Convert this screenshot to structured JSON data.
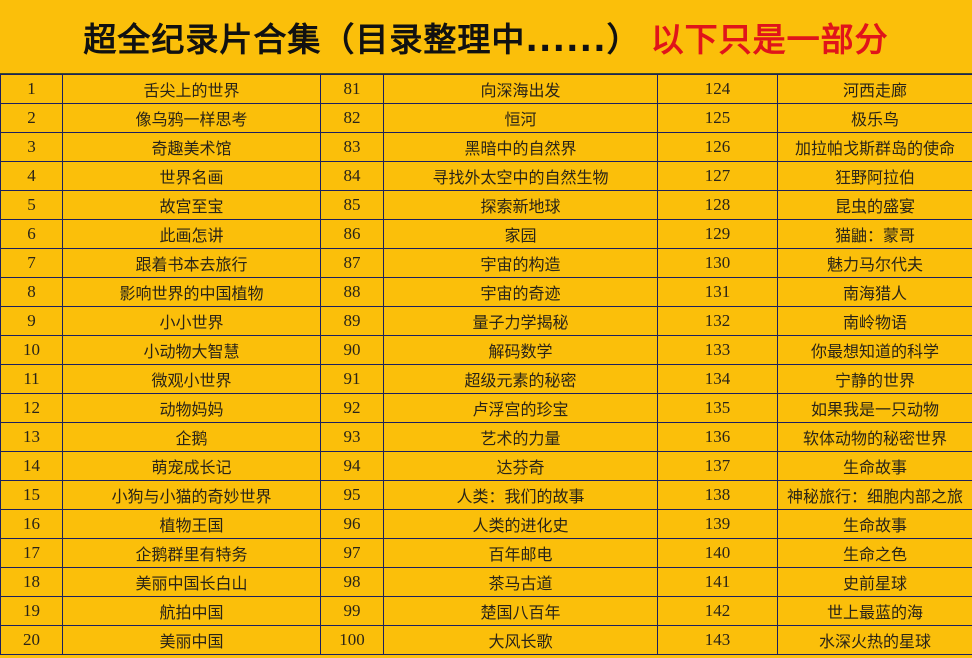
{
  "title": {
    "main": "超全纪录片合集（目录整理中......）",
    "note": "以下只是一部分"
  },
  "colors": {
    "background": "#fbbf0a",
    "note_text": "#e0141a",
    "grid": "#1c1f5e"
  },
  "rows": [
    [
      {
        "n": "1",
        "t": "舌尖上的世界"
      },
      {
        "n": "81",
        "t": "向深海出发"
      },
      {
        "n": "124",
        "t": "河西走廊"
      }
    ],
    [
      {
        "n": "2",
        "t": "像乌鸦一样思考"
      },
      {
        "n": "82",
        "t": "恒河"
      },
      {
        "n": "125",
        "t": "极乐鸟"
      }
    ],
    [
      {
        "n": "3",
        "t": "奇趣美术馆"
      },
      {
        "n": "83",
        "t": "黑暗中的自然界"
      },
      {
        "n": "126",
        "t": "加拉帕戈斯群岛的使命"
      }
    ],
    [
      {
        "n": "4",
        "t": "世界名画"
      },
      {
        "n": "84",
        "t": "寻找外太空中的自然生物"
      },
      {
        "n": "127",
        "t": "狂野阿拉伯"
      }
    ],
    [
      {
        "n": "5",
        "t": "故宫至宝"
      },
      {
        "n": "85",
        "t": "探索新地球"
      },
      {
        "n": "128",
        "t": "昆虫的盛宴"
      }
    ],
    [
      {
        "n": "6",
        "t": "此画怎讲"
      },
      {
        "n": "86",
        "t": "家园"
      },
      {
        "n": "129",
        "t": "猫鼬：蒙哥"
      }
    ],
    [
      {
        "n": "7",
        "t": "跟着书本去旅行"
      },
      {
        "n": "87",
        "t": "宇宙的构造"
      },
      {
        "n": "130",
        "t": "魅力马尔代夫"
      }
    ],
    [
      {
        "n": "8",
        "t": "影响世界的中国植物"
      },
      {
        "n": "88",
        "t": "宇宙的奇迹"
      },
      {
        "n": "131",
        "t": "南海猎人"
      }
    ],
    [
      {
        "n": "9",
        "t": "小小世界"
      },
      {
        "n": "89",
        "t": "量子力学揭秘"
      },
      {
        "n": "132",
        "t": "南岭物语"
      }
    ],
    [
      {
        "n": "10",
        "t": "小动物大智慧"
      },
      {
        "n": "90",
        "t": "解码数学"
      },
      {
        "n": "133",
        "t": "你最想知道的科学"
      }
    ],
    [
      {
        "n": "11",
        "t": "微观小世界"
      },
      {
        "n": "91",
        "t": "超级元素的秘密"
      },
      {
        "n": "134",
        "t": "宁静的世界"
      }
    ],
    [
      {
        "n": "12",
        "t": "动物妈妈"
      },
      {
        "n": "92",
        "t": "卢浮宫的珍宝"
      },
      {
        "n": "135",
        "t": "如果我是一只动物"
      }
    ],
    [
      {
        "n": "13",
        "t": "企鹅"
      },
      {
        "n": "93",
        "t": "艺术的力量"
      },
      {
        "n": "136",
        "t": "软体动物的秘密世界"
      }
    ],
    [
      {
        "n": "14",
        "t": "萌宠成长记"
      },
      {
        "n": "94",
        "t": "达芬奇"
      },
      {
        "n": "137",
        "t": "生命故事"
      }
    ],
    [
      {
        "n": "15",
        "t": "小狗与小猫的奇妙世界"
      },
      {
        "n": "95",
        "t": "人类：我们的故事"
      },
      {
        "n": "138",
        "t": "神秘旅行：细胞内部之旅"
      }
    ],
    [
      {
        "n": "16",
        "t": "植物王国"
      },
      {
        "n": "96",
        "t": "人类的进化史"
      },
      {
        "n": "139",
        "t": "生命故事"
      }
    ],
    [
      {
        "n": "17",
        "t": "企鹅群里有特务"
      },
      {
        "n": "97",
        "t": "百年邮电"
      },
      {
        "n": "140",
        "t": "生命之色"
      }
    ],
    [
      {
        "n": "18",
        "t": "美丽中国长白山"
      },
      {
        "n": "98",
        "t": "茶马古道"
      },
      {
        "n": "141",
        "t": "史前星球"
      }
    ],
    [
      {
        "n": "19",
        "t": "航拍中国"
      },
      {
        "n": "99",
        "t": "楚国八百年"
      },
      {
        "n": "142",
        "t": "世上最蓝的海"
      }
    ],
    [
      {
        "n": "20",
        "t": "美丽中国"
      },
      {
        "n": "100",
        "t": "大风长歌"
      },
      {
        "n": "143",
        "t": "水深火热的星球"
      }
    ]
  ]
}
